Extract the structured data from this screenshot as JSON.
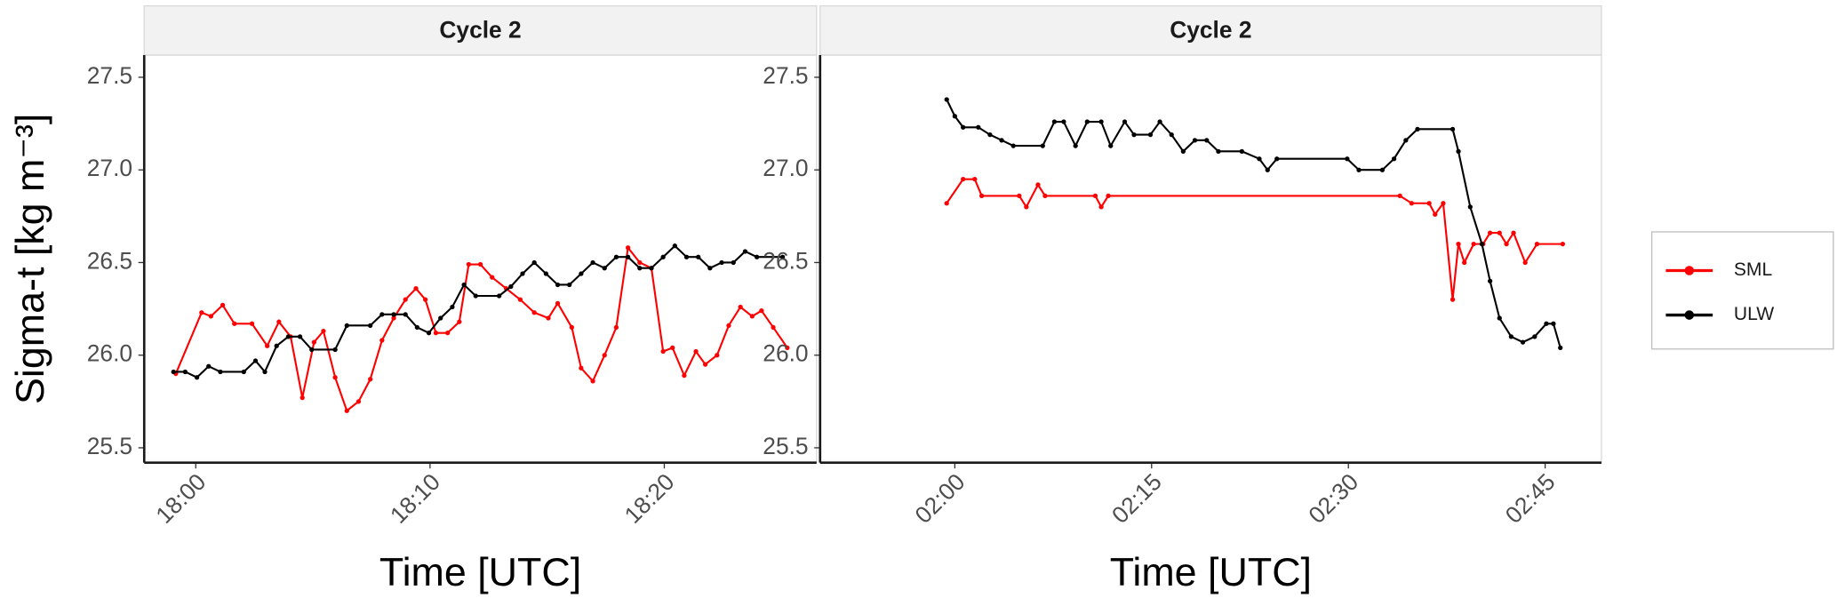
{
  "chart_data": [
    {
      "type": "line",
      "title": "Cycle 2",
      "x_label": "Time [UTC]",
      "y_label": "Sigma-t [kg m⁻³]",
      "xlim": [
        1077.8,
        1106.5
      ],
      "ylim": [
        25.42,
        27.62
      ],
      "xticks": [
        {
          "value": 1080,
          "label": "18:00"
        },
        {
          "value": 1090,
          "label": "18:10"
        },
        {
          "value": 1100,
          "label": "18:20"
        }
      ],
      "yticks": [
        25.5,
        {
          "value": 26,
          "label": "26.0"
        },
        26.5,
        {
          "value": 27,
          "label": "27.0"
        },
        27.5
      ],
      "series": [
        {
          "name": "SML",
          "color": "#ff0000",
          "x": [
            1079.15,
            1080.25,
            1080.65,
            1081.15,
            1081.65,
            1082.4,
            1083.05,
            1083.55,
            1084.05,
            1084.55,
            1085.05,
            1085.45,
            1085.95,
            1086.45,
            1086.95,
            1087.45,
            1087.95,
            1088.45,
            1088.95,
            1089.4,
            1089.8,
            1090.25,
            1090.75,
            1091.25,
            1091.65,
            1092.15,
            1092.65,
            1093.25,
            1093.85,
            1094.45,
            1095.05,
            1095.45,
            1096.05,
            1096.45,
            1096.95,
            1097.45,
            1097.95,
            1098.45,
            1098.95,
            1099.45,
            1099.95,
            1100.35,
            1100.85,
            1101.35,
            1101.75,
            1102.25,
            1102.75,
            1103.25,
            1103.75,
            1104.15,
            1104.65,
            1105.25
          ],
          "values": [
            25.9,
            26.23,
            26.21,
            26.27,
            26.17,
            26.17,
            26.05,
            26.18,
            26.1,
            25.77,
            26.07,
            26.13,
            25.88,
            25.7,
            25.75,
            25.87,
            26.08,
            26.2,
            26.3,
            26.36,
            26.3,
            26.12,
            26.12,
            26.18,
            26.49,
            26.49,
            26.42,
            26.36,
            26.3,
            26.23,
            26.2,
            26.28,
            26.15,
            25.93,
            25.86,
            26.0,
            26.15,
            26.58,
            26.5,
            26.47,
            26.02,
            26.04,
            25.89,
            26.02,
            25.95,
            26.0,
            26.16,
            26.26,
            26.21,
            26.24,
            26.15,
            26.04
          ]
        },
        {
          "name": "ULW",
          "color": "#000000",
          "x": [
            1079.05,
            1079.55,
            1080.05,
            1080.55,
            1081.05,
            1082.05,
            1082.55,
            1082.95,
            1083.45,
            1083.95,
            1084.45,
            1084.95,
            1085.95,
            1086.45,
            1087.45,
            1087.95,
            1088.45,
            1088.95,
            1089.45,
            1089.95,
            1090.45,
            1090.95,
            1091.45,
            1091.95,
            1092.95,
            1093.45,
            1093.95,
            1094.45,
            1094.95,
            1095.45,
            1095.95,
            1096.45,
            1096.95,
            1097.45,
            1097.95,
            1098.45,
            1098.95,
            1099.45,
            1099.95,
            1100.45,
            1100.95,
            1101.45,
            1101.95,
            1102.45,
            1102.95,
            1103.45,
            1103.95,
            1105.05
          ],
          "values": [
            25.91,
            25.91,
            25.88,
            25.94,
            25.91,
            25.91,
            25.97,
            25.91,
            26.05,
            26.1,
            26.1,
            26.03,
            26.03,
            26.16,
            26.16,
            26.22,
            26.22,
            26.22,
            26.15,
            26.12,
            26.2,
            26.26,
            26.38,
            26.32,
            26.32,
            26.37,
            26.44,
            26.5,
            26.44,
            26.38,
            26.38,
            26.44,
            26.5,
            26.47,
            26.53,
            26.53,
            26.47,
            26.47,
            26.53,
            26.59,
            26.53,
            26.53,
            26.47,
            26.5,
            26.5,
            26.56,
            26.53,
            26.53
          ]
        }
      ]
    },
    {
      "type": "line",
      "title": "Cycle 2",
      "x_label": "Time [UTC]",
      "legend": "right",
      "xlim": [
        109.73,
        169.29
      ],
      "ylim": [
        25.42,
        27.62
      ],
      "xticks": [
        {
          "value": 120,
          "label": "02:00"
        },
        {
          "value": 135,
          "label": "02:15"
        },
        {
          "value": 150,
          "label": "02:30"
        },
        {
          "value": 165,
          "label": "02:45"
        }
      ],
      "yticks": [
        25.5,
        {
          "value": 26,
          "label": "26.0"
        },
        26.5,
        {
          "value": 27,
          "label": "27.0"
        },
        27.5
      ],
      "series": [
        {
          "name": "SML",
          "color": "#ff0000",
          "x": [
            119.38,
            120.63,
            121.52,
            122.05,
            124.91,
            125.45,
            126.34,
            126.88,
            130.71,
            131.16,
            131.7,
            153.93,
            154.82,
            156.16,
            156.61,
            157.23,
            157.95,
            158.39,
            158.84,
            159.55,
            160.27,
            160.8,
            161.52,
            162.05,
            162.59,
            163.48,
            164.38,
            166.34
          ],
          "values": [
            26.82,
            26.95,
            26.95,
            26.86,
            26.86,
            26.8,
            26.92,
            26.86,
            26.86,
            26.8,
            26.86,
            26.86,
            26.82,
            26.82,
            26.76,
            26.82,
            26.3,
            26.6,
            26.5,
            26.6,
            26.6,
            26.66,
            26.66,
            26.6,
            26.66,
            26.5,
            26.6,
            26.6
          ]
        },
        {
          "name": "ULW",
          "color": "#000000",
          "x": [
            119.38,
            120,
            120.63,
            121.79,
            122.68,
            123.57,
            124.46,
            126.7,
            127.59,
            128.3,
            129.2,
            130.09,
            131.16,
            131.88,
            132.95,
            133.66,
            134.91,
            135.63,
            136.52,
            137.41,
            138.3,
            139.2,
            140.09,
            141.88,
            143.21,
            143.84,
            144.55,
            149.91,
            150.8,
            152.59,
            153.48,
            154.38,
            155.27,
            157.95,
            158.39,
            159.29,
            160.18,
            160.8,
            161.52,
            162.41,
            163.3,
            164.2,
            165.09,
            165.63,
            166.16
          ],
          "values": [
            27.38,
            27.29,
            27.23,
            27.23,
            27.19,
            27.16,
            27.13,
            27.13,
            27.26,
            27.26,
            27.13,
            27.26,
            27.26,
            27.13,
            27.26,
            27.19,
            27.19,
            27.26,
            27.19,
            27.1,
            27.16,
            27.16,
            27.1,
            27.1,
            27.06,
            27.0,
            27.06,
            27.06,
            27.0,
            27.0,
            27.06,
            27.16,
            27.22,
            27.22,
            27.1,
            26.8,
            26.6,
            26.4,
            26.2,
            26.1,
            26.07,
            26.1,
            26.17,
            26.17,
            26.04
          ]
        }
      ]
    }
  ]
}
